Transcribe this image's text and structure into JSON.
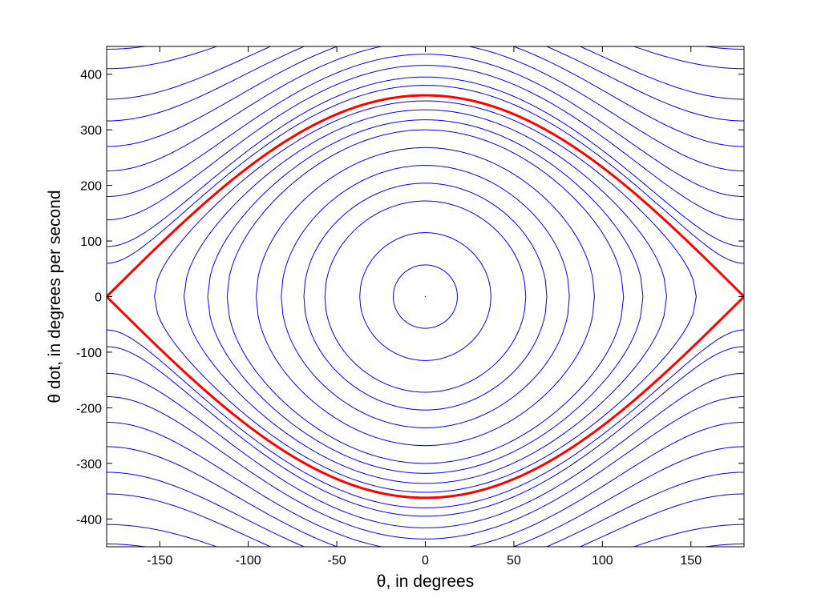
{
  "chart_data": {
    "type": "line",
    "title": "",
    "xlabel": "θ, in degrees",
    "ylabel": "θ dot, in degrees per second",
    "xlim": [
      -180,
      180
    ],
    "ylim": [
      -450,
      450
    ],
    "xticks": [
      -150,
      -100,
      -50,
      0,
      50,
      100,
      150
    ],
    "yticks": [
      -400,
      -300,
      -200,
      -100,
      0,
      100,
      200,
      300,
      400
    ],
    "xtick_labels": [
      "-150",
      "-100",
      "-50",
      "0",
      "50",
      "100",
      "150"
    ],
    "ytick_labels": [
      "-400",
      "-300",
      "-200",
      "-100",
      "0",
      "100",
      "200",
      "300",
      "400"
    ],
    "grid": false,
    "series": [
      {
        "kind": "closed-orbits",
        "color": "#0000ff",
        "peak_theta_dot": [
          0,
          57,
          115,
          172,
          204,
          236,
          268,
          300,
          318,
          336,
          352
        ]
      },
      {
        "kind": "separatrix",
        "color": "#ff0000",
        "peak_theta_dot": [
          362
        ]
      },
      {
        "kind": "rotating-orbits",
        "color": "#0000ff",
        "center_theta_dot": [
          380,
          395,
          416,
          436,
          458,
          480,
          500,
          522,
          545,
          570
        ],
        "edge_theta_dot": [
          60,
          90,
          138,
          180,
          226,
          270,
          316,
          355,
          410,
          445
        ]
      }
    ]
  },
  "colors": {
    "orbit": "#0000ff",
    "separatrix": "#ff0000",
    "axes": "#000000",
    "background": "#ffffff"
  }
}
